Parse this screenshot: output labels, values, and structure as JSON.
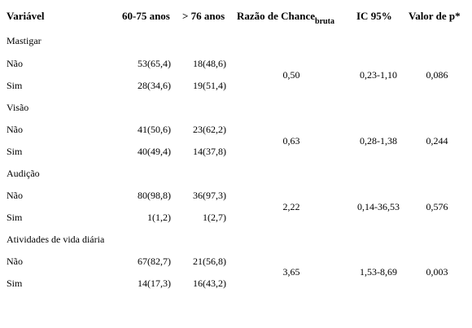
{
  "headers": {
    "variable": "Variável",
    "age1": "60-75 anos",
    "age2": "> 76 anos",
    "odds_main": "Razão de Chance",
    "odds_sub": "bruta",
    "ci": "IC 95%",
    "p": "Valor de p*"
  },
  "groups": [
    {
      "name": "Mastigar",
      "rows": [
        {
          "label": "Não",
          "age1": "53(65,4)",
          "age2": "18(48,6)"
        },
        {
          "label": "Sim",
          "age1": "28(34,6)",
          "age2": "19(51,4)"
        }
      ],
      "odds": "0,50",
      "ci": "0,23-1,10",
      "p": "0,086"
    },
    {
      "name": "Visão",
      "rows": [
        {
          "label": "Não",
          "age1": "41(50,6)",
          "age2": "23(62,2)"
        },
        {
          "label": "Sim",
          "age1": "40(49,4)",
          "age2": "14(37,8)"
        }
      ],
      "odds": "0,63",
      "ci": "0,28-1,38",
      "p": "0,244"
    },
    {
      "name": "Audição",
      "rows": [
        {
          "label": "Não",
          "age1": "80(98,8)",
          "age2": "36(97,3)"
        },
        {
          "label": "Sim",
          "age1": "1(1,2)",
          "age2": "1(2,7)"
        }
      ],
      "odds": "2,22",
      "ci": "0,14-36,53",
      "p": "0,576"
    },
    {
      "name": "Atividades de vida diária",
      "rows": [
        {
          "label": "Não",
          "age1": "67(82,7)",
          "age2": "21(56,8)"
        },
        {
          "label": "Sim",
          "age1": "14(17,3)",
          "age2": "16(43,2)"
        }
      ],
      "odds": "3,65",
      "ci": "1,53-8,69",
      "p": "0,003"
    }
  ]
}
